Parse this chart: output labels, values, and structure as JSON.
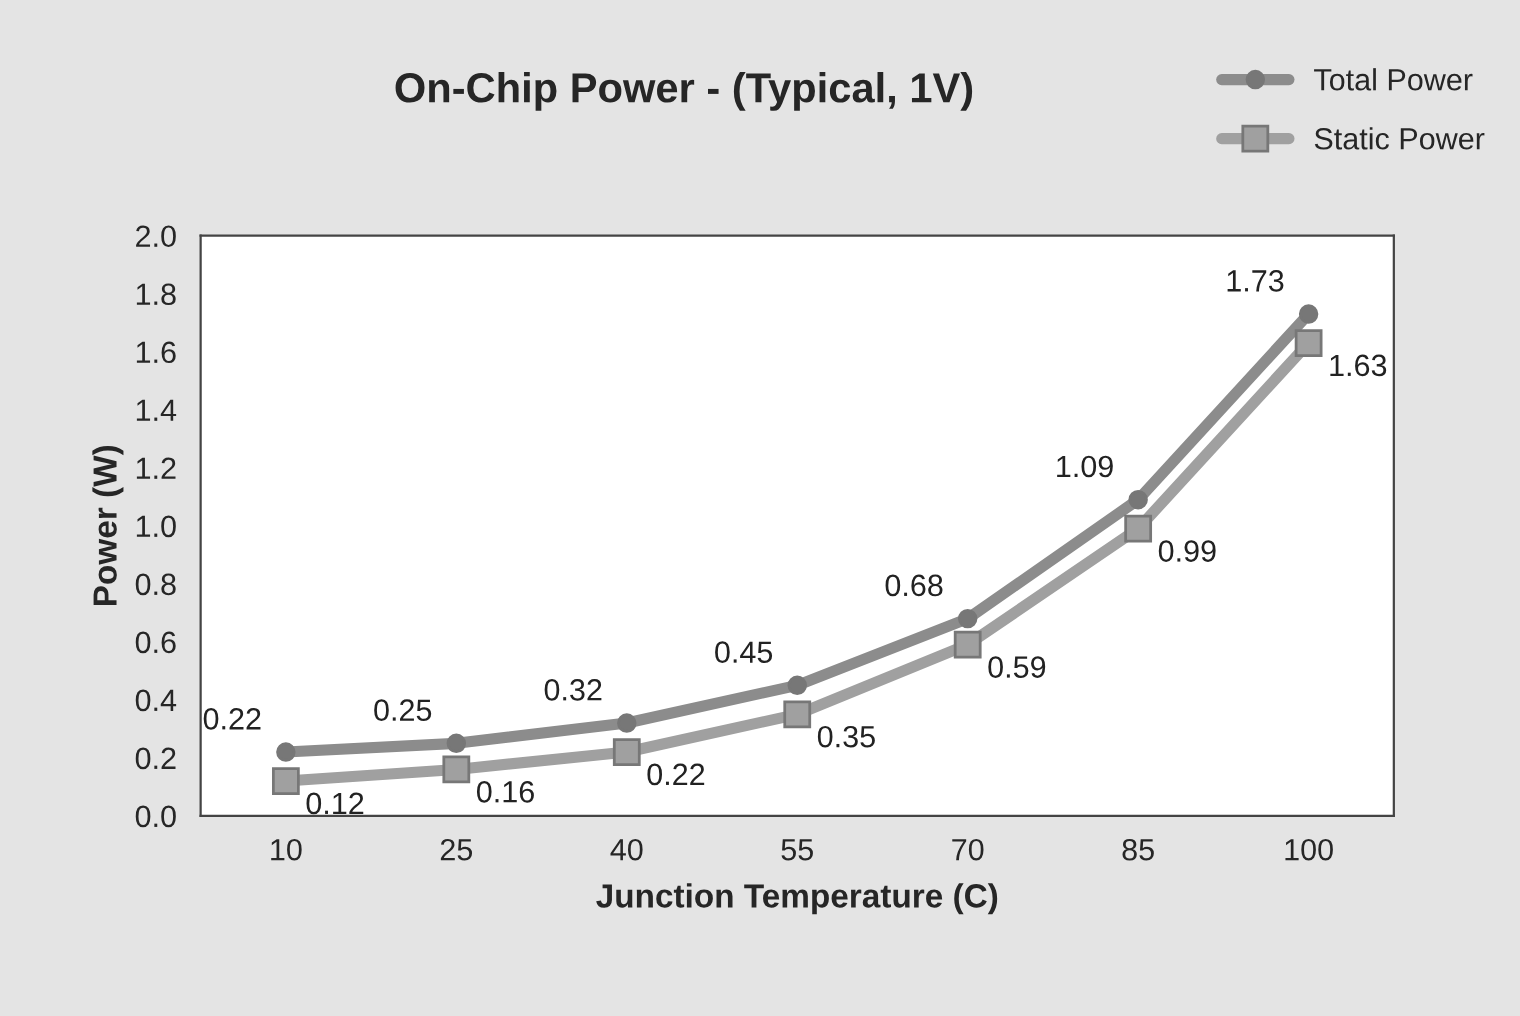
{
  "chart_data": {
    "type": "line",
    "title": "On-Chip Power - (Typical, 1V)",
    "xlabel": "Junction Temperature (C)",
    "ylabel": "Power (W)",
    "categories": [
      "10",
      "25",
      "40",
      "55",
      "70",
      "85",
      "100"
    ],
    "series": [
      {
        "name": "Total Power",
        "color": "#8c8c8c",
        "marker": "circle",
        "values": [
          0.22,
          0.25,
          0.32,
          0.45,
          0.68,
          1.09,
          1.73
        ]
      },
      {
        "name": "Static Power",
        "color": "#a0a0a0",
        "marker": "square",
        "values": [
          0.12,
          0.16,
          0.22,
          0.35,
          0.59,
          0.99,
          1.63
        ]
      }
    ],
    "ylim": [
      0,
      2
    ],
    "yticks": [
      {
        "value": 0,
        "label": "0.0"
      },
      {
        "value": 0.2,
        "label": "0.2"
      },
      {
        "value": 0.4,
        "label": "0.4"
      },
      {
        "value": 0.6,
        "label": "0.6"
      },
      {
        "value": 0.8,
        "label": "0.8"
      },
      {
        "value": 1.0,
        "label": "1.0"
      },
      {
        "value": 1.2,
        "label": "1.2"
      },
      {
        "value": 1.4,
        "label": "1.4"
      },
      {
        "value": 1.6,
        "label": "1.6"
      },
      {
        "value": 1.8,
        "label": "1.8"
      },
      {
        "value": 2.0,
        "label": "2.0"
      }
    ],
    "data_labels": true,
    "grid": false,
    "legend": "top right",
    "line_style": "solid"
  }
}
